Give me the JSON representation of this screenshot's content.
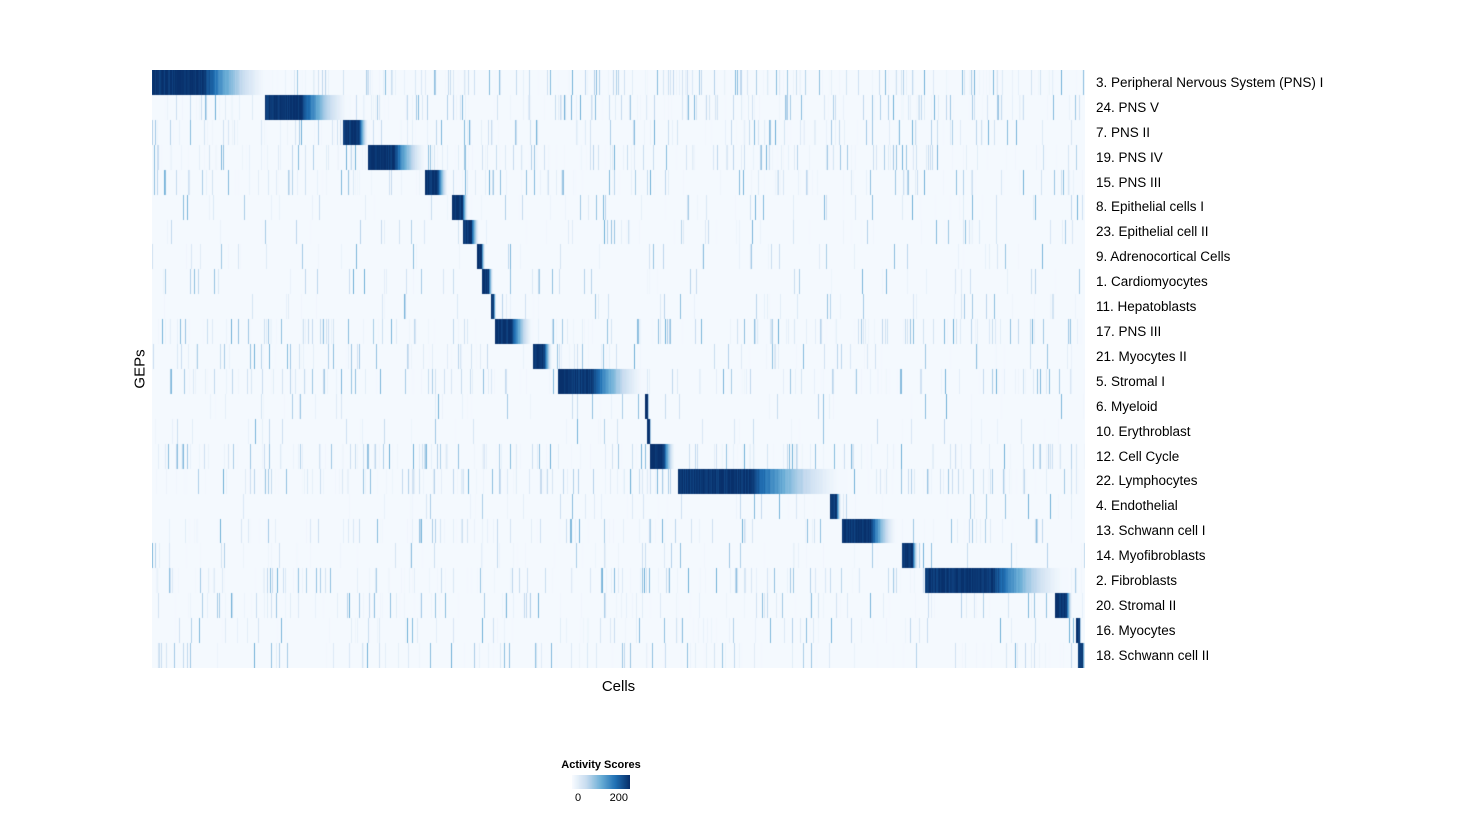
{
  "figure": {
    "background": "#ffffff",
    "text_color": "#000000"
  },
  "chart_data": {
    "type": "heatmap",
    "title": "",
    "xlabel": "Cells",
    "ylabel": "GEPs",
    "legend": {
      "title": "Activity Scores",
      "ticks": [
        "0",
        "200"
      ]
    },
    "value_range": [
      0,
      200
    ],
    "colorscale": {
      "name": "Blues",
      "stops": [
        [
          0,
          "#f7fbff"
        ],
        [
          0.25,
          "#c6dbef"
        ],
        [
          0.5,
          "#6baed6"
        ],
        [
          0.75,
          "#2171b5"
        ],
        [
          1,
          "#08306b"
        ]
      ]
    },
    "rows": [
      {
        "label": "3. Peripheral Nervous System (PNS) I",
        "start": 0.0,
        "core": 0.055,
        "end": 0.126,
        "noise": 0.5
      },
      {
        "label": "24. PNS V",
        "start": 0.121,
        "core": 0.16,
        "end": 0.212,
        "noise": 0.45
      },
      {
        "label": "7. PNS II",
        "start": 0.205,
        "core": 0.222,
        "end": 0.231,
        "noise": 0.35
      },
      {
        "label": "19. PNS IV",
        "start": 0.232,
        "core": 0.258,
        "end": 0.295,
        "noise": 0.45
      },
      {
        "label": "15. PNS III",
        "start": 0.293,
        "core": 0.305,
        "end": 0.317,
        "noise": 0.35
      },
      {
        "label": "8. Epithelial cells I",
        "start": 0.322,
        "core": 0.332,
        "end": 0.339,
        "noise": 0.15
      },
      {
        "label": "23. Epithelial cell II",
        "start": 0.333,
        "core": 0.342,
        "end": 0.35,
        "noise": 0.15
      },
      {
        "label": "9. Adrenocortical Cells",
        "start": 0.348,
        "core": 0.353,
        "end": 0.357,
        "noise": 0.12
      },
      {
        "label": "1. Cardiomyocytes",
        "start": 0.354,
        "core": 0.36,
        "end": 0.366,
        "noise": 0.12
      },
      {
        "label": "11. Hepatoblasts",
        "start": 0.363,
        "core": 0.366,
        "end": 0.369,
        "noise": 0.12
      },
      {
        "label": "17. PNS III",
        "start": 0.368,
        "core": 0.385,
        "end": 0.408,
        "noise": 0.4
      },
      {
        "label": "21. Myocytes II",
        "start": 0.408,
        "core": 0.42,
        "end": 0.429,
        "noise": 0.25
      },
      {
        "label": "5. Stromal I",
        "start": 0.435,
        "core": 0.47,
        "end": 0.529,
        "noise": 0.35
      },
      {
        "label": "6. Myeloid",
        "start": 0.528,
        "core": 0.531,
        "end": 0.533,
        "noise": 0.1
      },
      {
        "label": "10. Erythroblast",
        "start": 0.531,
        "core": 0.533,
        "end": 0.535,
        "noise": 0.1
      },
      {
        "label": "12. Cell Cycle",
        "start": 0.534,
        "core": 0.548,
        "end": 0.561,
        "noise": 0.45
      },
      {
        "label": "22. Lymphocytes",
        "start": 0.564,
        "core": 0.64,
        "end": 0.745,
        "noise": 0.5
      },
      {
        "label": "4. Endothelial",
        "start": 0.727,
        "core": 0.733,
        "end": 0.738,
        "noise": 0.12
      },
      {
        "label": "13. Schwann cell I",
        "start": 0.74,
        "core": 0.77,
        "end": 0.799,
        "noise": 0.3
      },
      {
        "label": "14. Myofibroblasts",
        "start": 0.804,
        "core": 0.815,
        "end": 0.821,
        "noise": 0.15
      },
      {
        "label": "2. Fibroblasts",
        "start": 0.829,
        "core": 0.9,
        "end": 0.982,
        "noise": 0.4
      },
      {
        "label": "20. Stromal II",
        "start": 0.968,
        "core": 0.98,
        "end": 0.986,
        "noise": 0.3
      },
      {
        "label": "16. Myocytes",
        "start": 0.99,
        "core": 0.994,
        "end": 0.996,
        "noise": 0.2
      },
      {
        "label": "18. Schwann cell II",
        "start": 0.992,
        "core": 0.997,
        "end": 1.0,
        "noise": 0.25
      }
    ]
  }
}
